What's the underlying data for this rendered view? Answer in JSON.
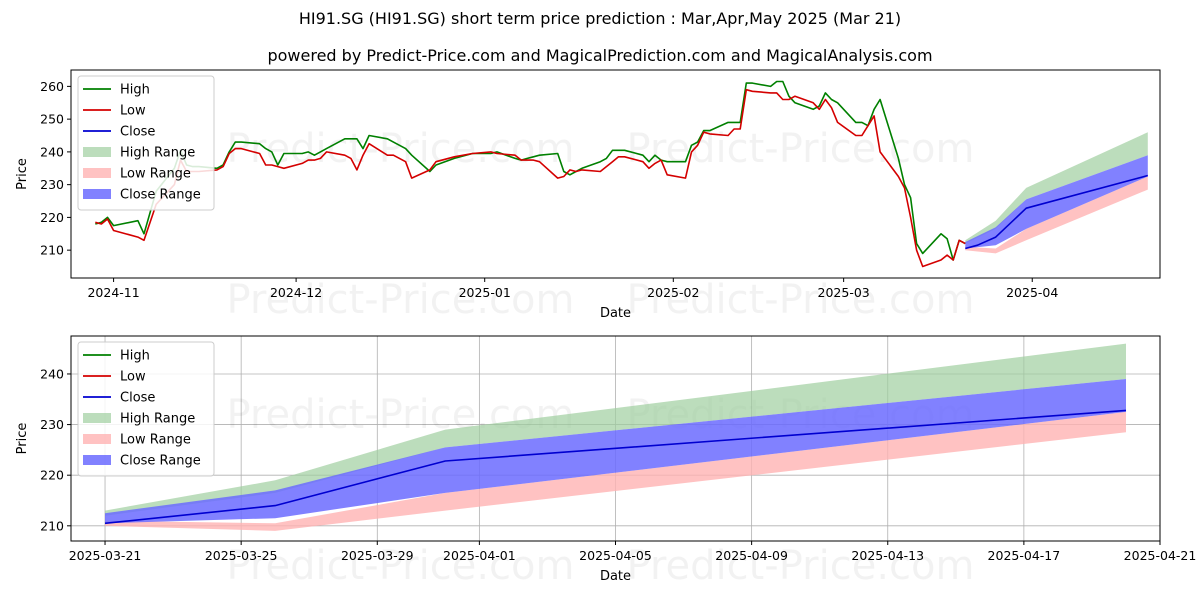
{
  "page": {
    "title": "HI91.SG (HI91.SG) short term price prediction : Mar,Apr,May 2025 (Mar 21)",
    "subtitle": "powered by Predict-Price.com and MagicalPrediction.com and MagicalAnalysis.com",
    "watermark": "Predict-Price.com"
  },
  "colors": {
    "high": "#008000",
    "low": "#d40000",
    "close": "#0000d0",
    "high_range": "#9fcf9f",
    "low_range": "#ffb3b3",
    "close_range": "#6b6bff"
  },
  "chart_data": [
    {
      "type": "line",
      "xlabel": "Date",
      "ylabel": "Price",
      "ylim": [
        201.5,
        265
      ],
      "xlim": [
        "2024-10-25",
        "2025-04-22"
      ],
      "x_ticks": [
        "2024-11-01",
        "2024-12-01",
        "2025-01-01",
        "2025-02-01",
        "2025-03-01",
        "2025-04-01"
      ],
      "x_tick_labels": [
        "2024-11",
        "2024-12",
        "2025-01",
        "2025-02",
        "2025-03",
        "2025-04"
      ],
      "y_ticks": [
        210,
        220,
        230,
        240,
        250,
        260
      ],
      "grid": false,
      "legend": "top-left",
      "legend_entries": [
        "High",
        "Low",
        "Close",
        "High Range",
        "Low Range",
        "Close Range"
      ],
      "series": [
        {
          "name": "High",
          "x": [
            "2024-10-29",
            "2024-10-30",
            "2024-10-31",
            "2024-11-01",
            "2024-11-05",
            "2024-11-06",
            "2024-11-08",
            "2024-11-11",
            "2024-11-12",
            "2024-11-13",
            "2024-11-14",
            "2024-11-15",
            "2024-11-18",
            "2024-11-19",
            "2024-11-20",
            "2024-11-21",
            "2024-11-22",
            "2024-11-25",
            "2024-11-26",
            "2024-11-27",
            "2024-11-28",
            "2024-11-29",
            "2024-12-02",
            "2024-12-03",
            "2024-12-04",
            "2024-12-05",
            "2024-12-06",
            "2024-12-09",
            "2024-12-10",
            "2024-12-11",
            "2024-12-12",
            "2024-12-13",
            "2024-12-16",
            "2024-12-17",
            "2024-12-18",
            "2024-12-19",
            "2024-12-20",
            "2024-12-23",
            "2024-12-24",
            "2024-12-27",
            "2024-12-30",
            "2025-01-02",
            "2025-01-03",
            "2025-01-06",
            "2025-01-07",
            "2025-01-08",
            "2025-01-09",
            "2025-01-10",
            "2025-01-13",
            "2025-01-14",
            "2025-01-15",
            "2025-01-16",
            "2025-01-17",
            "2025-01-20",
            "2025-01-21",
            "2025-01-22",
            "2025-01-23",
            "2025-01-24",
            "2025-01-27",
            "2025-01-28",
            "2025-01-29",
            "2025-01-30",
            "2025-01-31",
            "2025-02-03",
            "2025-02-04",
            "2025-02-05",
            "2025-02-06",
            "2025-02-07",
            "2025-02-10",
            "2025-02-11",
            "2025-02-12",
            "2025-02-13",
            "2025-02-14",
            "2025-02-17",
            "2025-02-18",
            "2025-02-19",
            "2025-02-20",
            "2025-02-21",
            "2025-02-24",
            "2025-02-25",
            "2025-02-26",
            "2025-02-27",
            "2025-02-28",
            "2025-03-03",
            "2025-03-04",
            "2025-03-05",
            "2025-03-06",
            "2025-03-07",
            "2025-03-10",
            "2025-03-11",
            "2025-03-12",
            "2025-03-13",
            "2025-03-14",
            "2025-03-17",
            "2025-03-18",
            "2025-03-19",
            "2025-03-20",
            "2025-03-21"
          ],
          "values": [
            218,
            218.5,
            220,
            217.5,
            219,
            215,
            228,
            235,
            240.5,
            236,
            235.5,
            235.5,
            235,
            236,
            240,
            243,
            243,
            242.5,
            241,
            240,
            236,
            239.5,
            239.5,
            240,
            239,
            240,
            241,
            244,
            244,
            244,
            241,
            245,
            244,
            243,
            242,
            241,
            239,
            234,
            236,
            238,
            239.5,
            239.5,
            240,
            238,
            237.5,
            238,
            238.5,
            239,
            239.5,
            234,
            233,
            234,
            235,
            237,
            238,
            240.5,
            240.5,
            240.5,
            239,
            237,
            239,
            237.5,
            237,
            237,
            242,
            243,
            246.5,
            246.5,
            249,
            249,
            249,
            261,
            261,
            260,
            261.5,
            261.5,
            257,
            255,
            253,
            254,
            258,
            256,
            255,
            249,
            249,
            248,
            253,
            256,
            238,
            230,
            226,
            212,
            209,
            215,
            213.5,
            207,
            213,
            212
          ]
        },
        {
          "name": "Low",
          "x": [
            "2024-10-29",
            "2024-10-30",
            "2024-10-31",
            "2024-11-01",
            "2024-11-05",
            "2024-11-06",
            "2024-11-08",
            "2024-11-11",
            "2024-11-12",
            "2024-11-13",
            "2024-11-14",
            "2024-11-15",
            "2024-11-18",
            "2024-11-19",
            "2024-11-20",
            "2024-11-21",
            "2024-11-22",
            "2024-11-25",
            "2024-11-26",
            "2024-11-27",
            "2024-11-28",
            "2024-11-29",
            "2024-12-02",
            "2024-12-03",
            "2024-12-04",
            "2024-12-05",
            "2024-12-06",
            "2024-12-09",
            "2024-12-10",
            "2024-12-11",
            "2024-12-12",
            "2024-12-13",
            "2024-12-16",
            "2024-12-17",
            "2024-12-18",
            "2024-12-19",
            "2024-12-20",
            "2024-12-23",
            "2024-12-24",
            "2024-12-27",
            "2024-12-30",
            "2025-01-02",
            "2025-01-03",
            "2025-01-06",
            "2025-01-07",
            "2025-01-08",
            "2025-01-09",
            "2025-01-10",
            "2025-01-13",
            "2025-01-14",
            "2025-01-15",
            "2025-01-16",
            "2025-01-17",
            "2025-01-20",
            "2025-01-21",
            "2025-01-22",
            "2025-01-23",
            "2025-01-24",
            "2025-01-27",
            "2025-01-28",
            "2025-01-29",
            "2025-01-30",
            "2025-01-31",
            "2025-02-03",
            "2025-02-04",
            "2025-02-05",
            "2025-02-06",
            "2025-02-07",
            "2025-02-10",
            "2025-02-11",
            "2025-02-12",
            "2025-02-13",
            "2025-02-14",
            "2025-02-17",
            "2025-02-18",
            "2025-02-19",
            "2025-02-20",
            "2025-02-21",
            "2025-02-24",
            "2025-02-25",
            "2025-02-26",
            "2025-02-27",
            "2025-02-28",
            "2025-03-03",
            "2025-03-04",
            "2025-03-05",
            "2025-03-06",
            "2025-03-07",
            "2025-03-10",
            "2025-03-11",
            "2025-03-12",
            "2025-03-13",
            "2025-03-14",
            "2025-03-17",
            "2025-03-18",
            "2025-03-19",
            "2025-03-20",
            "2025-03-21"
          ],
          "values": [
            218.5,
            218,
            219.5,
            216,
            214,
            213,
            224,
            230,
            237.5,
            234,
            234,
            234,
            234.5,
            235.5,
            239.5,
            241,
            241,
            239.5,
            236,
            236,
            235.5,
            235,
            236.5,
            237.5,
            237.5,
            238,
            240,
            239,
            238,
            234.5,
            239,
            242.5,
            239,
            239,
            238,
            237,
            232,
            234.5,
            237,
            238.5,
            239.5,
            240,
            239.5,
            239,
            237.5,
            237.5,
            237.5,
            237,
            232,
            232.5,
            234.5,
            234,
            234.5,
            234,
            235.5,
            237,
            238.5,
            238.5,
            237,
            235,
            236.5,
            237.5,
            233,
            232,
            240,
            242,
            246,
            245.5,
            245,
            247,
            247,
            259,
            258.5,
            258,
            258,
            256,
            256,
            257,
            255,
            253,
            256,
            253.5,
            249,
            245,
            245,
            248,
            251,
            240,
            232.5,
            229,
            220,
            210,
            205,
            207,
            208.5,
            207,
            213,
            212
          ]
        },
        {
          "name": "Close",
          "x": [
            "2025-03-21",
            "2025-03-23",
            "2025-03-26",
            "2025-03-31",
            "2025-04-20"
          ],
          "values": [
            210.5,
            211.5,
            214,
            222.8,
            232.8
          ]
        }
      ]
    },
    {
      "type": "area",
      "xlabel": "Date",
      "ylabel": "Price",
      "ylim": [
        207,
        247.5
      ],
      "xlim": [
        "2025-03-20",
        "2025-04-21"
      ],
      "x_ticks": [
        "2025-03-21",
        "2025-03-25",
        "2025-03-29",
        "2025-04-01",
        "2025-04-05",
        "2025-04-09",
        "2025-04-13",
        "2025-04-17",
        "2025-04-21"
      ],
      "y_ticks": [
        210,
        220,
        230,
        240
      ],
      "grid": true,
      "legend": "top-left",
      "legend_entries": [
        "High",
        "Low",
        "Close",
        "High Range",
        "Low Range",
        "Close Range"
      ],
      "x": [
        "2025-03-21",
        "2025-03-26",
        "2025-03-31",
        "2025-04-20"
      ],
      "series": [
        {
          "name": "High Range",
          "upper": [
            213,
            219,
            229,
            246
          ],
          "lower": [
            212,
            216.5,
            225.5,
            239
          ]
        },
        {
          "name": "Low Range",
          "upper": [
            211,
            210.5,
            216.5,
            232.5
          ],
          "lower": [
            210,
            209,
            213,
            228.5
          ]
        },
        {
          "name": "Close Range",
          "upper": [
            212.5,
            217,
            225.5,
            239
          ],
          "lower": [
            210.5,
            211.5,
            216.5,
            232.5
          ]
        },
        {
          "name": "Close",
          "values": [
            210.5,
            214,
            222.8,
            232.8
          ]
        }
      ]
    }
  ]
}
